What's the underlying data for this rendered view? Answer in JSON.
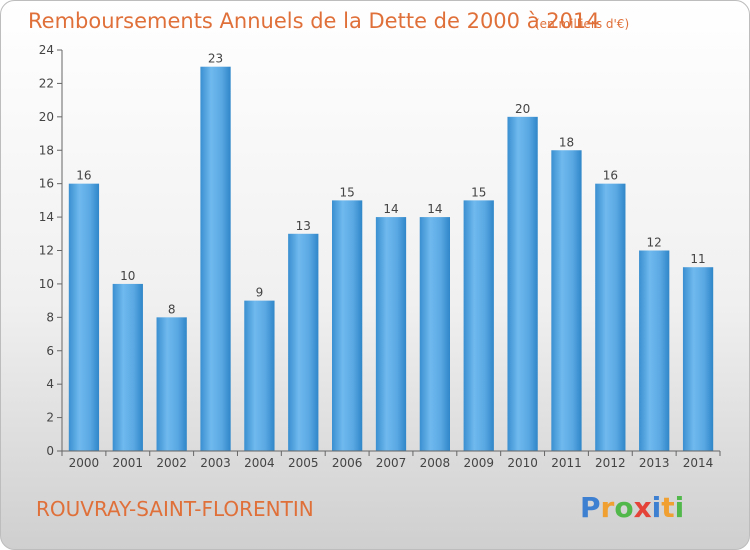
{
  "title": "Remboursements Annuels de la Dette de 2000 à 2014",
  "subtitle": "(en milliers d'€)",
  "location": "ROUVRAY-SAINT-FLORENTIN",
  "brand": "Proxiti",
  "colors": {
    "title": "#e0703a",
    "location": "#e0703a",
    "bar_light": "#6fb9ee",
    "bar_dark": "#2f86c8",
    "axis": "#555555",
    "grid": "#d8d8d8",
    "bg_top": "#ffffff",
    "bg_bottom": "#d2d2d2"
  },
  "chart_data": {
    "type": "bar",
    "categories": [
      "2000",
      "2001",
      "2002",
      "2003",
      "2004",
      "2005",
      "2006",
      "2007",
      "2008",
      "2009",
      "2010",
      "2011",
      "2012",
      "2013",
      "2014"
    ],
    "values": [
      16,
      10,
      8,
      23,
      9,
      13,
      15,
      14,
      14,
      15,
      20,
      18,
      16,
      12,
      11
    ],
    "data_labels": [
      "16",
      "10",
      "8",
      "23",
      "9",
      "13",
      "15",
      "14",
      "14",
      "15",
      "20",
      "18",
      "16",
      "12",
      "11"
    ],
    "ylim": [
      0,
      24
    ],
    "yticks": [
      0,
      2,
      4,
      6,
      8,
      10,
      12,
      14,
      16,
      18,
      20,
      22,
      24
    ],
    "xlabel": "",
    "ylabel": "",
    "grid": false
  }
}
